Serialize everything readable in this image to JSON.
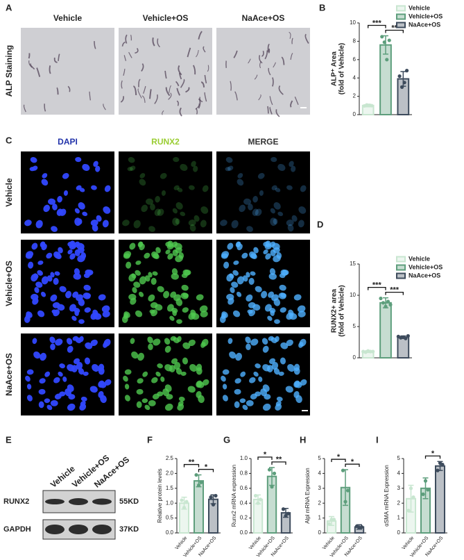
{
  "panel_letters": [
    "A",
    "B",
    "C",
    "D",
    "E",
    "F",
    "G",
    "H",
    "I"
  ],
  "alp": {
    "row_label": "ALP Staining",
    "columns": [
      "Vehicle",
      "Vehicle+OS",
      "NaAce+OS"
    ]
  },
  "immunofluorescence": {
    "columns": [
      "DAPI",
      "RUNX2",
      "MERGE"
    ],
    "rows": [
      "Vehicle",
      "Vehicle+OS",
      "NaAce+OS"
    ]
  },
  "blot": {
    "lanes": [
      "Vehicle",
      "Vehicle+OS",
      "NaAce+OS"
    ],
    "proteins": [
      "RUNX2",
      "GAPDH"
    ],
    "sizes": [
      "55KD",
      "37KD"
    ]
  },
  "chart_data": [
    {
      "type": "bar",
      "ylabel": [
        "ALP⁺ Area",
        "(fold of Vehicle)"
      ],
      "categories": [
        "Vehicle",
        "Vehicle+OS",
        "NaAce+OS"
      ],
      "values": [
        1,
        7.6,
        3.9
      ],
      "errors": [
        0.15,
        1.0,
        0.8
      ],
      "points": [
        [
          0.95,
          1.05,
          1.0,
          0.98
        ],
        [
          8.5,
          7.9,
          6.0,
          8.1
        ],
        [
          4.2,
          3.0,
          3.5,
          4.8
        ]
      ],
      "colors": [
        "#c8e6d0",
        "#5d9e7c",
        "#3d4b5c"
      ],
      "ylim": [
        0,
        10
      ],
      "yticks": [
        0,
        2,
        4,
        6,
        8,
        10
      ],
      "legend": "top-right",
      "annotations": [
        {
          "text": "***",
          "pair": [
            0,
            1
          ]
        },
        {
          "text": "**",
          "pair": [
            1,
            2
          ]
        }
      ]
    },
    {
      "type": "bar",
      "ylabel": [
        "RUNX2+ area",
        "(fold of Vehicle)"
      ],
      "categories": [
        "Vehicle",
        "Vehicle+OS",
        "NaAce+OS"
      ],
      "values": [
        1,
        8.8,
        3.3
      ],
      "errors": [
        0.15,
        0.8,
        0.2
      ],
      "points": [
        [
          1.0,
          0.9,
          1.1,
          1.0,
          1.0
        ],
        [
          9.5,
          8.8,
          8.2,
          9.0,
          8.5
        ],
        [
          3.4,
          3.2,
          3.3,
          3.1,
          3.5
        ]
      ],
      "colors": [
        "#c8e6d0",
        "#5d9e7c",
        "#3d4b5c"
      ],
      "ylim": [
        0,
        15
      ],
      "yticks": [
        0,
        5,
        10,
        15
      ],
      "legend": "top-right",
      "annotations": [
        {
          "text": "***",
          "pair": [
            0,
            1
          ]
        },
        {
          "text": "***",
          "pair": [
            1,
            2
          ]
        }
      ]
    },
    {
      "type": "bar",
      "ylabel": [
        "Relative protein levels"
      ],
      "categories": [
        "Vehicle",
        "Vehicle+OS",
        "NaAce+OS"
      ],
      "values": [
        1.0,
        1.75,
        1.13
      ],
      "errors": [
        0.2,
        0.2,
        0.15
      ],
      "points": [
        [
          1.1,
          0.85,
          1.05
        ],
        [
          1.95,
          1.6,
          1.7
        ],
        [
          1.2,
          0.95,
          1.25
        ]
      ],
      "colors": [
        "#c8e6d0",
        "#5d9e7c",
        "#3d4b5c"
      ],
      "ylim": [
        0,
        2.5
      ],
      "yticks": [
        {
          "value": 0,
          "label": "0.0"
        },
        0.5,
        {
          "value": 1,
          "label": "1.0"
        },
        1.5,
        {
          "value": 2,
          "label": "2.0"
        },
        2.5
      ],
      "annotations": [
        {
          "text": "**",
          "pair": [
            0,
            1
          ]
        },
        {
          "text": "*",
          "pair": [
            1,
            2
          ]
        }
      ]
    },
    {
      "type": "bar",
      "ylabel": [
        "Runx2 mRNA expression"
      ],
      "categories": [
        "Vehicle",
        "Vehicle+OS",
        "NaAce+OS"
      ],
      "values": [
        0.45,
        0.76,
        0.27
      ],
      "errors": [
        0.06,
        0.12,
        0.06
      ],
      "points": [
        [
          0.5,
          0.4,
          0.45
        ],
        [
          0.85,
          0.62,
          0.8
        ],
        [
          0.32,
          0.23,
          0.26
        ]
      ],
      "colors": [
        "#c8e6d0",
        "#5d9e7c",
        "#3d4b5c"
      ],
      "ylim": [
        0,
        1
      ],
      "yticks": [
        {
          "value": 0,
          "label": "0.0"
        },
        0.2,
        0.4,
        0.6,
        0.8,
        {
          "value": 1,
          "label": "1.0"
        }
      ],
      "annotations": [
        {
          "text": "*",
          "pair": [
            0,
            1
          ]
        },
        {
          "text": "**",
          "pair": [
            1,
            2
          ]
        }
      ]
    },
    {
      "type": "bar",
      "ylabel": [
        "Alpl mRNA Expression"
      ],
      "categories": [
        "Vehicle",
        "Vehicle+OS",
        "NaAce+OS"
      ],
      "values": [
        0.8,
        3.05,
        0.4
      ],
      "errors": [
        0.3,
        1.2,
        0.15
      ],
      "points": [
        [
          0.6,
          0.9,
          0.9
        ],
        [
          4.2,
          2.1,
          2.85
        ],
        [
          0.45,
          0.35,
          0.4
        ]
      ],
      "colors": [
        "#c8e6d0",
        "#5d9e7c",
        "#3d4b5c"
      ],
      "ylim": [
        0,
        5
      ],
      "yticks": [
        0,
        1,
        2,
        3,
        4,
        5
      ],
      "annotations": [
        {
          "text": "*",
          "pair": [
            0,
            1
          ]
        },
        {
          "text": "*",
          "pair": [
            1,
            2
          ]
        }
      ]
    },
    {
      "type": "bar",
      "ylabel": [
        "αSMA mRNA Expression"
      ],
      "categories": [
        "Vehicle",
        "Vehicle+OS",
        "NaAce+OS"
      ],
      "values": [
        2.3,
        3.0,
        4.5
      ],
      "errors": [
        0.9,
        0.7,
        0.3
      ],
      "points": [
        [
          1.5,
          3.0,
          2.4
        ],
        [
          2.6,
          3.5,
          2.9
        ],
        [
          4.2,
          4.7,
          4.6
        ]
      ],
      "colors": [
        "#c8e6d0",
        "#5d9e7c",
        "#3d4b5c"
      ],
      "ylim": [
        0,
        5
      ],
      "yticks": [
        0,
        1,
        2,
        3,
        4,
        5
      ],
      "annotations": [
        {
          "text": "*",
          "pair": [
            1,
            2
          ]
        }
      ]
    }
  ]
}
